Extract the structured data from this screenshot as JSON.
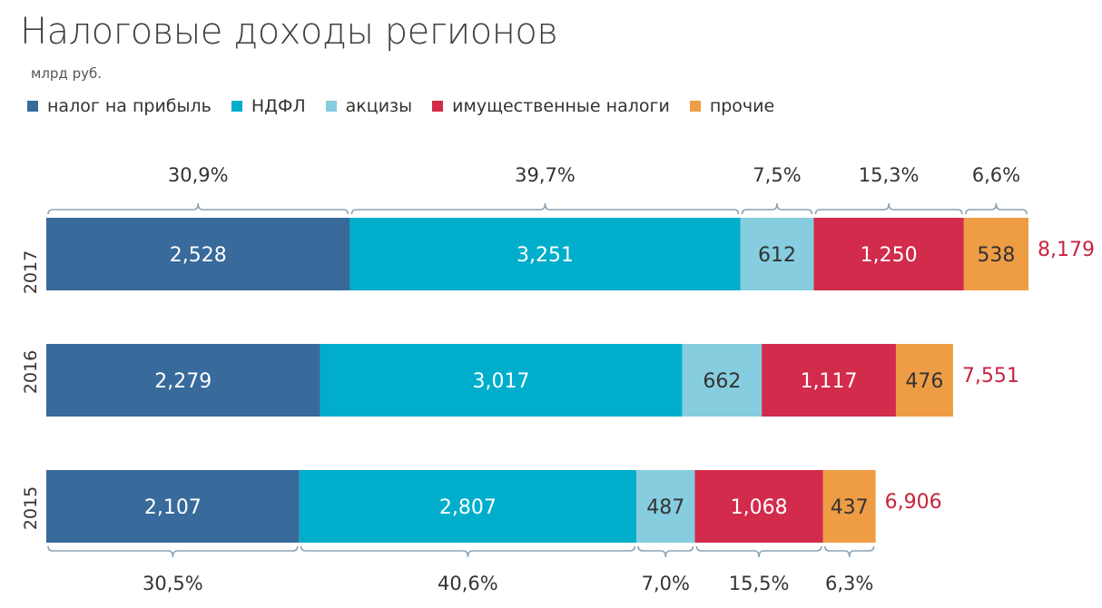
{
  "title": "Налоговые доходы регионов",
  "unit": "млрд руб.",
  "legend": [
    {
      "name": "налог на прибыль",
      "color": "#386a9b"
    },
    {
      "name": "НДФЛ",
      "color": "#00aecc"
    },
    {
      "name": "акцизы",
      "color": "#85cddf"
    },
    {
      "name": "имущественные налоги",
      "color": "#d22b4b"
    },
    {
      "name": "прочие",
      "color": "#ee9d45"
    }
  ],
  "chart_data": {
    "type": "bar",
    "orientation": "horizontal",
    "stacked": true,
    "categories": [
      "2017",
      "2016",
      "2015"
    ],
    "series": [
      {
        "name": "налог на прибыль",
        "color": "#386a9b",
        "labels": [
          "2,528",
          "2,279",
          "2,107"
        ],
        "values": [
          2528,
          2279,
          2107
        ]
      },
      {
        "name": "НДФЛ",
        "color": "#00aecc",
        "labels": [
          "3,251",
          "3,017",
          "2,807"
        ],
        "values": [
          3251,
          3017,
          2807
        ]
      },
      {
        "name": "акцизы",
        "color": "#85cddf",
        "labels": [
          "612",
          "662",
          "487"
        ],
        "values": [
          612,
          662,
          487
        ]
      },
      {
        "name": "имущественные налоги",
        "color": "#d22b4b",
        "labels": [
          "1,250",
          "1,117",
          "1,068"
        ],
        "values": [
          1250,
          1117,
          1068
        ]
      },
      {
        "name": "прочие",
        "color": "#ee9d45",
        "labels": [
          "538",
          "476",
          "437"
        ],
        "values": [
          538,
          476,
          437
        ]
      }
    ],
    "totals": {
      "labels": [
        "8,179",
        "7,551",
        "6,906"
      ],
      "values": [
        8179,
        7551,
        6906
      ]
    },
    "shares_2017": [
      "30,9%",
      "39,7%",
      "7,5%",
      "15,3%",
      "6,6%"
    ],
    "shares_2015": [
      "30,5%",
      "40,6%",
      "7,0%",
      "15,5%",
      "6,3%"
    ],
    "total_color": "#c8243f",
    "legend_position": "top"
  }
}
